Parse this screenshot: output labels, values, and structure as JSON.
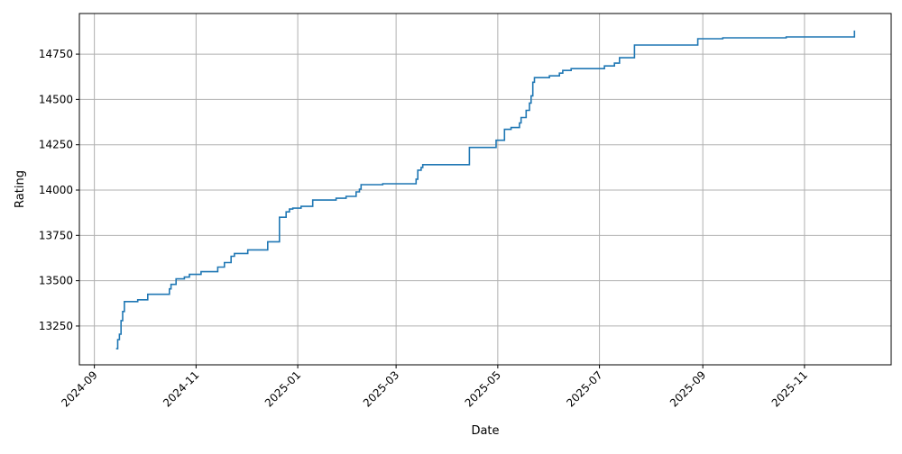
{
  "chart_data": {
    "type": "line",
    "step": "post",
    "title": "",
    "xlabel": "Date",
    "ylabel": "Rating",
    "xlim": [
      "2024-08-23",
      "2025-12-23"
    ],
    "ylim": [
      13036,
      14974
    ],
    "grid": true,
    "line_color": "#1f77b4",
    "x_ticks": [
      "2024-09",
      "2024-11",
      "2025-01",
      "2025-03",
      "2025-05",
      "2025-07",
      "2025-09",
      "2025-11"
    ],
    "y_ticks": [
      13250,
      13500,
      13750,
      14000,
      14250,
      14500,
      14750
    ],
    "points": [
      [
        "2024-09-14",
        13125
      ],
      [
        "2024-09-15",
        13175
      ],
      [
        "2024-09-16",
        13205
      ],
      [
        "2024-09-17",
        13280
      ],
      [
        "2024-09-18",
        13330
      ],
      [
        "2024-09-19",
        13385
      ],
      [
        "2024-09-27",
        13395
      ],
      [
        "2024-10-03",
        13425
      ],
      [
        "2024-10-16",
        13455
      ],
      [
        "2024-10-17",
        13480
      ],
      [
        "2024-10-20",
        13510
      ],
      [
        "2024-10-25",
        13520
      ],
      [
        "2024-10-28",
        13535
      ],
      [
        "2024-11-04",
        13550
      ],
      [
        "2024-11-14",
        13575
      ],
      [
        "2024-11-18",
        13600
      ],
      [
        "2024-11-22",
        13635
      ],
      [
        "2024-11-24",
        13650
      ],
      [
        "2024-12-02",
        13670
      ],
      [
        "2024-12-14",
        13715
      ],
      [
        "2024-12-21",
        13850
      ],
      [
        "2024-12-25",
        13880
      ],
      [
        "2024-12-27",
        13895
      ],
      [
        "2024-12-29",
        13900
      ],
      [
        "2025-01-03",
        13910
      ],
      [
        "2025-01-10",
        13945
      ],
      [
        "2025-01-24",
        13955
      ],
      [
        "2025-01-30",
        13965
      ],
      [
        "2025-02-05",
        13990
      ],
      [
        "2025-02-07",
        14005
      ],
      [
        "2025-02-08",
        14030
      ],
      [
        "2025-02-21",
        14035
      ],
      [
        "2025-03-13",
        14060
      ],
      [
        "2025-03-14",
        14110
      ],
      [
        "2025-03-16",
        14125
      ],
      [
        "2025-03-17",
        14140
      ],
      [
        "2025-04-14",
        14235
      ],
      [
        "2025-04-30",
        14275
      ],
      [
        "2025-05-05",
        14335
      ],
      [
        "2025-05-09",
        14345
      ],
      [
        "2025-05-14",
        14370
      ],
      [
        "2025-05-15",
        14400
      ],
      [
        "2025-05-18",
        14440
      ],
      [
        "2025-05-20",
        14480
      ],
      [
        "2025-05-21",
        14520
      ],
      [
        "2025-05-22",
        14595
      ],
      [
        "2025-05-23",
        14620
      ],
      [
        "2025-06-01",
        14630
      ],
      [
        "2025-06-07",
        14645
      ],
      [
        "2025-06-09",
        14660
      ],
      [
        "2025-06-14",
        14670
      ],
      [
        "2025-07-04",
        14685
      ],
      [
        "2025-07-10",
        14700
      ],
      [
        "2025-07-13",
        14730
      ],
      [
        "2025-07-22",
        14800
      ],
      [
        "2025-08-29",
        14835
      ],
      [
        "2025-09-13",
        14840
      ],
      [
        "2025-10-21",
        14845
      ],
      [
        "2025-12-01",
        14850
      ],
      [
        "2025-12-01",
        14880
      ]
    ]
  }
}
